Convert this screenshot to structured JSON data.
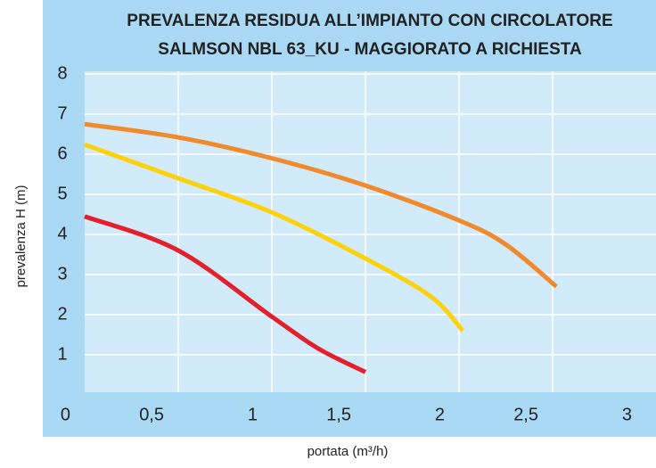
{
  "chart_data": {
    "type": "line",
    "title": [
      "PREVALENZA RESIDUA ALL’IMPIANTO CON CIRCOLATORE",
      "SALMSON NBL 63_KU - MAGGIORATO A RICHIESTA"
    ],
    "x_label": "portata (m³/h)",
    "y_label": "prevalenza H (m)",
    "xlim": [
      0,
      3
    ],
    "ylim": [
      0,
      8
    ],
    "xticks": [
      0,
      {
        "value": 0.5,
        "label": "0,5"
      },
      1,
      {
        "value": 1.5,
        "label": "1,5"
      },
      2,
      {
        "value": 2.5,
        "label": "2,5"
      },
      3
    ],
    "yticks": [
      1,
      2,
      3,
      4,
      5,
      6,
      7,
      8
    ],
    "grid": true,
    "series": [
      {
        "color": "#f08a2a",
        "x": [
          0,
          0.5,
          1,
          1.5,
          2,
          2.25,
          2.52
        ],
        "values": [
          6.75,
          6.42,
          5.9,
          5.22,
          4.35,
          3.75,
          2.7
        ]
      },
      {
        "color": "#fcd20a",
        "x": [
          0,
          0.5,
          1,
          1.5,
          1.85,
          2.02
        ],
        "values": [
          6.24,
          5.4,
          4.55,
          3.4,
          2.45,
          1.6
        ]
      },
      {
        "color": "#e3202b",
        "x": [
          0,
          0.5,
          1,
          1.25,
          1.5
        ],
        "values": [
          4.45,
          3.6,
          1.95,
          1.15,
          0.57
        ]
      }
    ]
  }
}
